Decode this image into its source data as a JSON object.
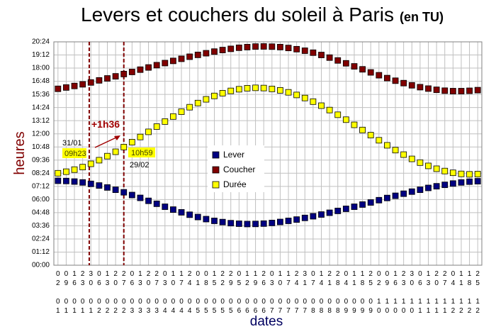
{
  "chart_data": {
    "type": "scatter",
    "title": "Levers et couchers du soleil à Paris",
    "subtitle": "(en TU)",
    "y_label": "heures",
    "x_label": "dates",
    "categories": [
      "02 01",
      "09 01",
      "16 01",
      "23 01",
      "30 01",
      "06 02",
      "13 02",
      "20 02",
      "27 02",
      "06 03",
      "13 03",
      "20 03",
      "27 03",
      "03 04",
      "10 04",
      "17 04",
      "24 04",
      "01 05",
      "08 05",
      "15 05",
      "22 05",
      "29 05",
      "05 06",
      "12 06",
      "19 06",
      "26 06",
      "03 07",
      "10 07",
      "17 07",
      "24 07",
      "31 07",
      "07 08",
      "14 08",
      "21 08",
      "28 08",
      "04 09",
      "11 09",
      "18 09",
      "25 09",
      "02 10",
      "09 10",
      "16 10",
      "23 10",
      "30 10",
      "06 11",
      "13 11",
      "20 11",
      "27 11",
      "04 12",
      "11 12",
      "18 12",
      "25 12"
    ],
    "series": [
      {
        "name": "Lever",
        "color": "#000080",
        "values": [
          7.71,
          7.69,
          7.64,
          7.56,
          7.43,
          7.28,
          7.1,
          6.89,
          6.66,
          6.41,
          6.15,
          5.88,
          5.61,
          5.34,
          5.08,
          4.83,
          4.61,
          4.4,
          4.21,
          4.05,
          3.94,
          3.84,
          3.79,
          3.76,
          3.77,
          3.8,
          3.86,
          3.95,
          4.05,
          4.17,
          4.32,
          4.47,
          4.63,
          4.79,
          4.96,
          5.15,
          5.34,
          5.54,
          5.73,
          5.94,
          6.14,
          6.34,
          6.53,
          6.72,
          6.89,
          7.06,
          7.21,
          7.34,
          7.46,
          7.56,
          7.63,
          7.67
        ]
      },
      {
        "name": "Coucher",
        "color": "#800000",
        "values": [
          16.11,
          16.23,
          16.37,
          16.52,
          16.69,
          16.88,
          17.06,
          17.25,
          17.46,
          17.65,
          17.86,
          18.06,
          18.27,
          18.46,
          18.66,
          18.85,
          19.04,
          19.21,
          19.36,
          19.51,
          19.65,
          19.76,
          19.86,
          19.92,
          19.97,
          19.98,
          19.96,
          19.92,
          19.84,
          19.73,
          19.59,
          19.41,
          19.2,
          18.96,
          18.7,
          18.44,
          18.16,
          17.89,
          17.61,
          17.35,
          17.09,
          16.85,
          16.63,
          16.43,
          16.26,
          16.13,
          16.02,
          15.94,
          15.9,
          15.9,
          15.93,
          15.99
        ]
      },
      {
        "name": "Durée",
        "color": "#ffff00",
        "values": [
          8.4,
          8.54,
          8.73,
          8.96,
          9.26,
          9.59,
          9.96,
          10.36,
          10.79,
          11.24,
          11.71,
          12.18,
          12.66,
          13.12,
          13.58,
          14.02,
          14.43,
          14.81,
          15.15,
          15.46,
          15.71,
          15.92,
          16.07,
          16.16,
          16.2,
          16.18,
          16.1,
          15.97,
          15.79,
          15.55,
          15.27,
          14.94,
          14.57,
          14.17,
          13.74,
          13.29,
          12.82,
          12.35,
          11.88,
          11.41,
          10.95,
          10.51,
          10.1,
          9.71,
          9.37,
          9.07,
          8.81,
          8.6,
          8.44,
          8.34,
          8.3,
          8.32
        ]
      }
    ],
    "ylim": [
      0,
      20.4
    ],
    "yticks": [
      {
        "value": 0,
        "label": "00:00"
      },
      {
        "value": 1.2,
        "label": "01:12"
      },
      {
        "value": 2.4,
        "label": "02:24"
      },
      {
        "value": 3.6,
        "label": "03:36"
      },
      {
        "value": 4.8,
        "label": "04:48"
      },
      {
        "value": 6,
        "label": "06:00"
      },
      {
        "value": 7.2,
        "label": "07:12"
      },
      {
        "value": 8.4,
        "label": "08:24"
      },
      {
        "value": 9.6,
        "label": "09:36"
      },
      {
        "value": 10.8,
        "label": "10:48"
      },
      {
        "value": 12,
        "label": "12:00"
      },
      {
        "value": 13.2,
        "label": "13:12"
      },
      {
        "value": 14.4,
        "label": "14:24"
      },
      {
        "value": 15.6,
        "label": "15:36"
      },
      {
        "value": 16.8,
        "label": "16:48"
      },
      {
        "value": 18,
        "label": "18:00"
      },
      {
        "value": 19.2,
        "label": "19:12"
      },
      {
        "value": 20.4,
        "label": "20:24"
      }
    ],
    "grid": true,
    "annotations": [
      "31/01",
      "09h23",
      "+1h36",
      "10h59",
      "29/02"
    ]
  }
}
